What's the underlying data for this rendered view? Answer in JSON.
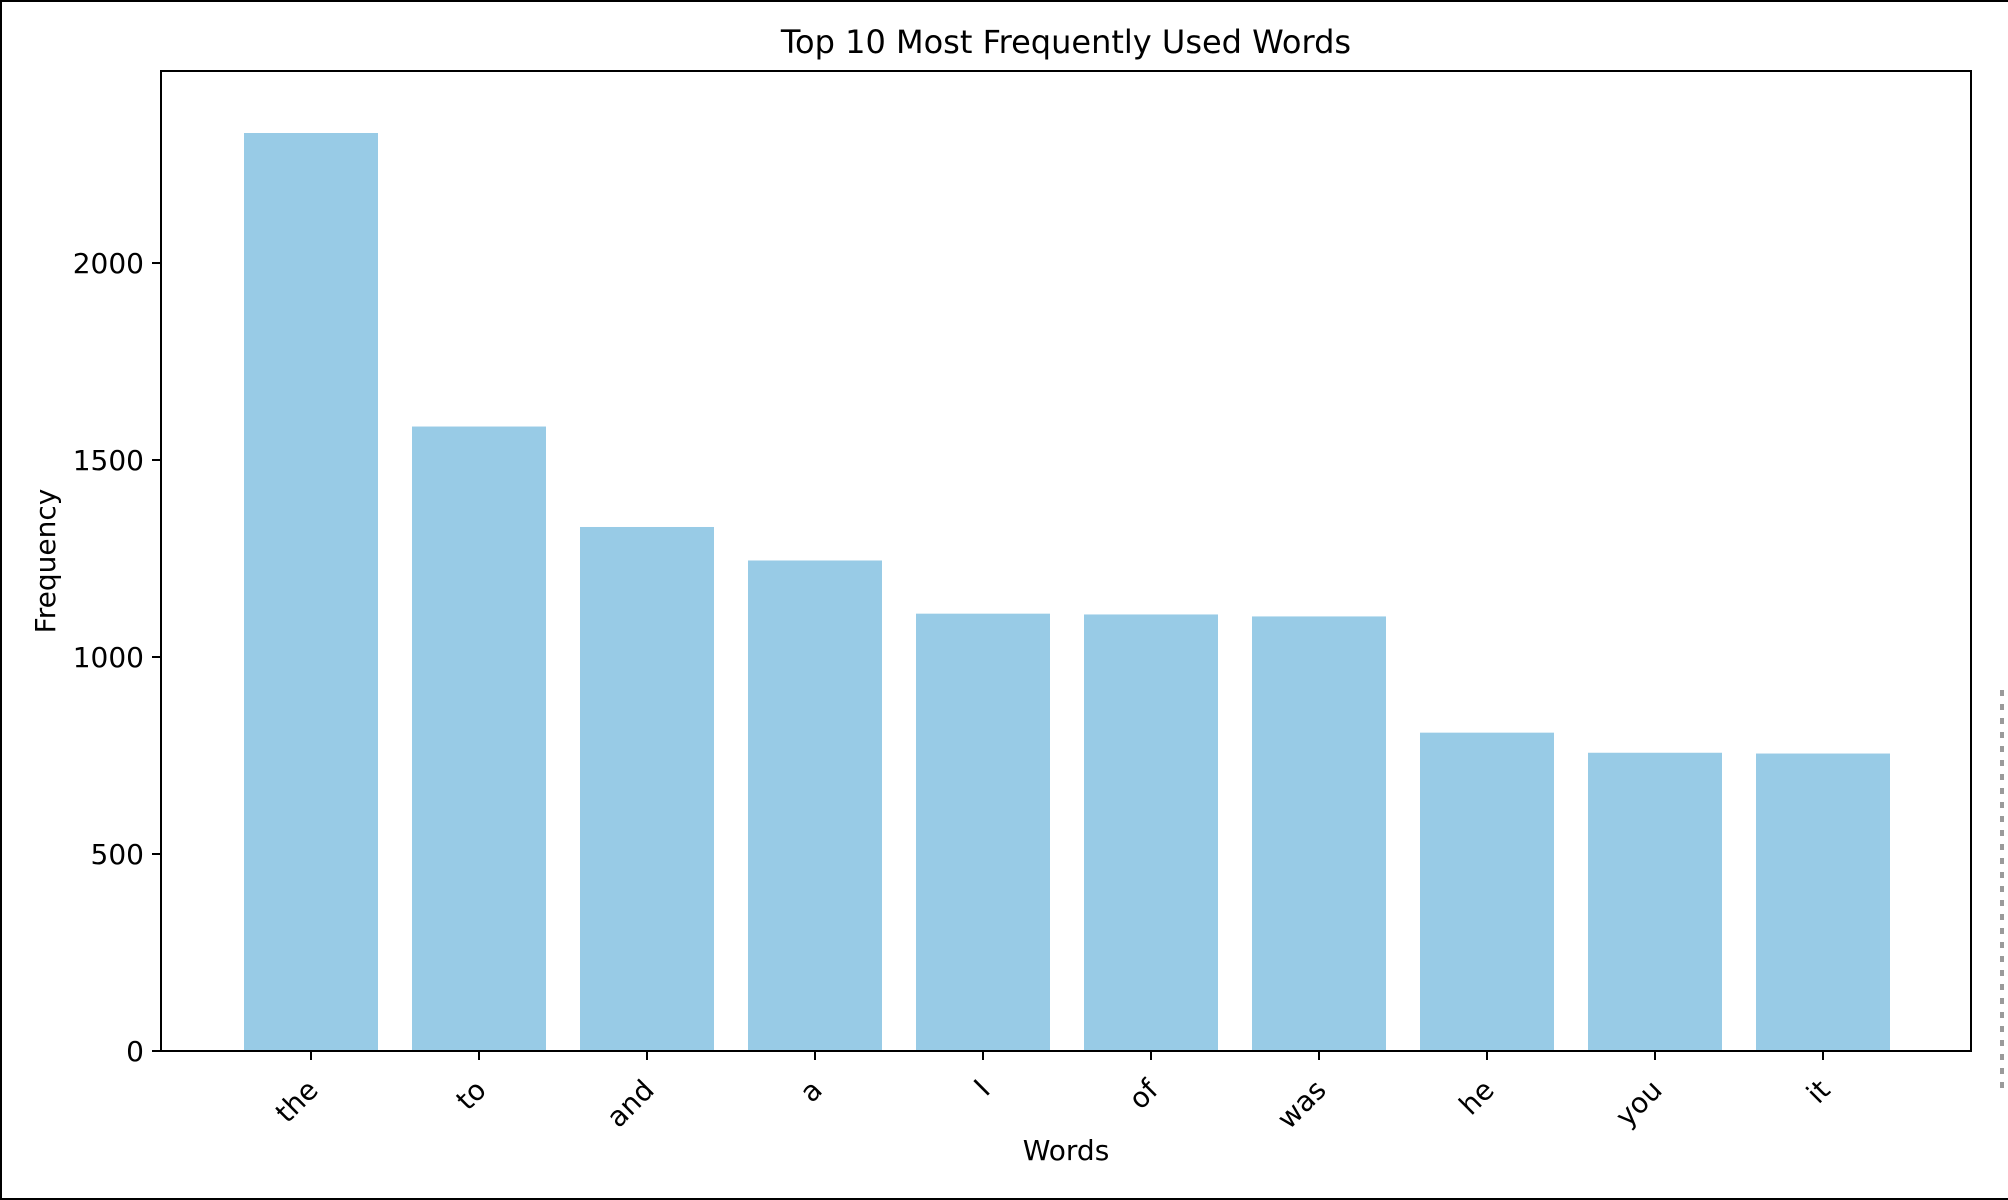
{
  "chart_data": {
    "type": "bar",
    "title": "Top 10 Most Frequently Used Words",
    "xlabel": "Words",
    "ylabel": "Frequency",
    "categories": [
      "the",
      "to",
      "and",
      "a",
      "I",
      "of",
      "was",
      "he",
      "you",
      "it"
    ],
    "values": [
      2330,
      1585,
      1330,
      1245,
      1110,
      1108,
      1103,
      808,
      757,
      755
    ],
    "ylim": [
      0,
      2450
    ],
    "yticks": [
      0,
      500,
      1000,
      1500,
      2000
    ],
    "bar_color": "#98cbe6",
    "grid": false,
    "legend": "none",
    "xtick_rotation": "45"
  }
}
